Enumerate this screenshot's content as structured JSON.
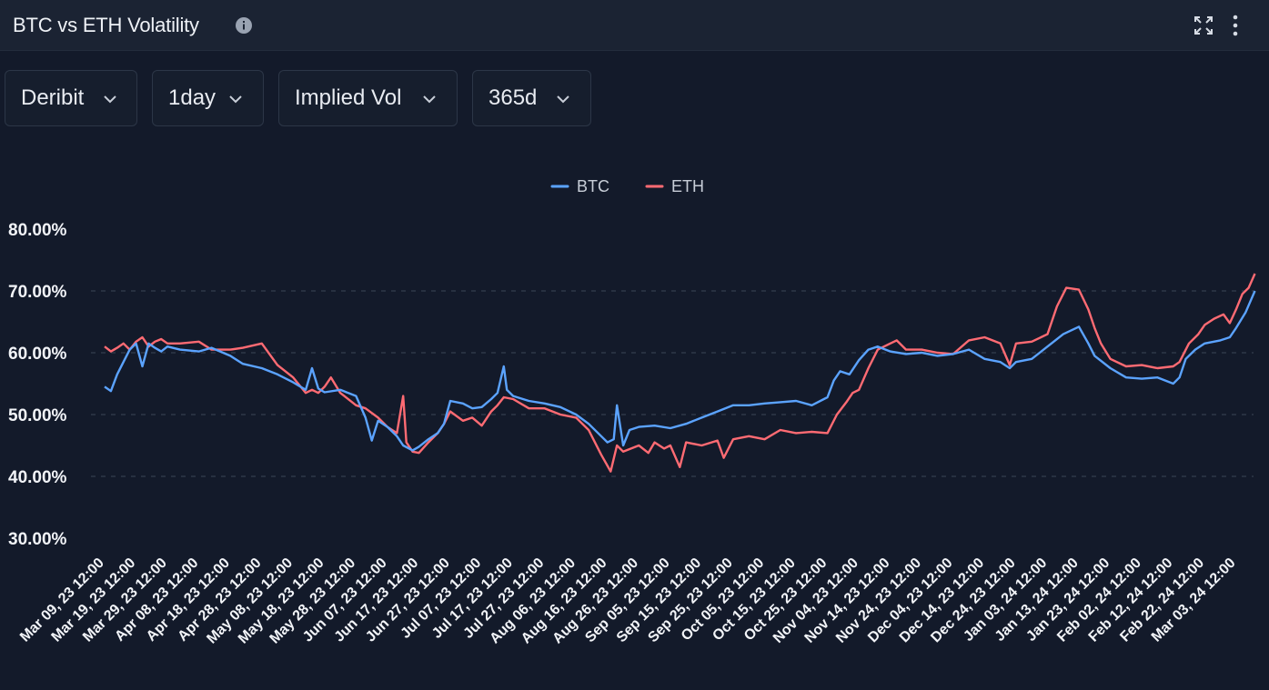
{
  "header": {
    "title": "BTC vs ETH Volatility",
    "info_icon": "info-icon",
    "expand_icon": "expand-icon",
    "more_icon": "more-vertical-icon"
  },
  "filters": [
    {
      "label": "Deribit"
    },
    {
      "label": "1day"
    },
    {
      "label": "Implied Vol"
    },
    {
      "label": "365d"
    }
  ],
  "colors": {
    "background": "#131a2a",
    "btc": "#5ba3ff",
    "eth": "#ff6b73",
    "grid": "#2e3748",
    "text": "#f2f4f8"
  },
  "chart_data": {
    "type": "line",
    "legend_position": "top-center",
    "grid": true,
    "ylim": [
      30,
      80
    ],
    "y_ticks": [
      "80.00%",
      "70.00%",
      "60.00%",
      "50.00%",
      "40.00%",
      "30.00%"
    ],
    "x_ticks": [
      "Mar 09, 23 12:00",
      "Mar 19, 23 12:00",
      "Mar 29, 23 12:00",
      "Apr 08, 23 12:00",
      "Apr 18, 23 12:00",
      "Apr 28, 23 12:00",
      "May 08, 23 12:00",
      "May 18, 23 12:00",
      "May 28, 23 12:00",
      "Jun 07, 23 12:00",
      "Jun 17, 23 12:00",
      "Jun 27, 23 12:00",
      "Jul 07, 23 12:00",
      "Jul 17, 23 12:00",
      "Jul 27, 23 12:00",
      "Aug 06, 23 12:00",
      "Aug 16, 23 12:00",
      "Aug 26, 23 12:00",
      "Sep 05, 23 12:00",
      "Sep 15, 23 12:00",
      "Sep 25, 23 12:00",
      "Oct 05, 23 12:00",
      "Oct 15, 23 12:00",
      "Oct 25, 23 12:00",
      "Nov 04, 23 12:00",
      "Nov 14, 23 12:00",
      "Nov 24, 23 12:00",
      "Dec 04, 23 12:00",
      "Dec 14, 23 12:00",
      "Dec 24, 23 12:00",
      "Jan 03, 24 12:00",
      "Jan 13, 24 12:00",
      "Jan 23, 24 12:00",
      "Feb 02, 24 12:00",
      "Feb 12, 24 12:00",
      "Feb 22, 24 12:00",
      "Mar 03, 24 12:00"
    ],
    "series": [
      {
        "name": "BTC",
        "color": "#5ba3ff",
        "points": [
          [
            "Mar 09, 23 12:00",
            54.5
          ],
          [
            "Mar 11, 23 12:00",
            53.8
          ],
          [
            "Mar 13, 23 12:00",
            56.5
          ],
          [
            "Mar 15, 23 12:00",
            58.5
          ],
          [
            "Mar 17, 23 12:00",
            60.5
          ],
          [
            "Mar 19, 23 12:00",
            61.5
          ],
          [
            "Mar 21, 23 12:00",
            57.8
          ],
          [
            "Mar 23, 23 12:00",
            61.5
          ],
          [
            "Mar 25, 23 12:00",
            60.8
          ],
          [
            "Mar 27, 23 12:00",
            60.2
          ],
          [
            "Mar 29, 23 12:00",
            61.0
          ],
          [
            "Apr 02, 23 12:00",
            60.5
          ],
          [
            "Apr 08, 23 12:00",
            60.2
          ],
          [
            "Apr 12, 23 12:00",
            60.8
          ],
          [
            "Apr 18, 23 12:00",
            59.5
          ],
          [
            "Apr 22, 23 12:00",
            58.2
          ],
          [
            "Apr 28, 23 12:00",
            57.5
          ],
          [
            "May 03, 23 12:00",
            56.5
          ],
          [
            "May 08, 23 12:00",
            55.2
          ],
          [
            "May 12, 23 12:00",
            54.0
          ],
          [
            "May 14, 23 12:00",
            57.5
          ],
          [
            "May 16, 23 12:00",
            54.2
          ],
          [
            "May 18, 23 12:00",
            53.6
          ],
          [
            "May 23, 23 12:00",
            54.0
          ],
          [
            "May 28, 23 12:00",
            53.0
          ],
          [
            "May 31, 23 12:00",
            49.5
          ],
          [
            "Jun 02, 23 12:00",
            45.8
          ],
          [
            "Jun 04, 23 12:00",
            49.0
          ],
          [
            "Jun 07, 23 12:00",
            48.0
          ],
          [
            "Jun 10, 23 12:00",
            46.5
          ],
          [
            "Jun 12, 23 12:00",
            45.0
          ],
          [
            "Jun 15, 23 12:00",
            44.2
          ],
          [
            "Jun 17, 23 12:00",
            44.8
          ],
          [
            "Jun 20, 23 12:00",
            46.0
          ],
          [
            "Jun 23, 23 12:00",
            47.0
          ],
          [
            "Jun 25, 23 12:00",
            48.5
          ],
          [
            "Jun 27, 23 12:00",
            52.2
          ],
          [
            "Jul 01, 23 12:00",
            51.8
          ],
          [
            "Jul 04, 23 12:00",
            51.0
          ],
          [
            "Jul 07, 23 12:00",
            51.2
          ],
          [
            "Jul 10, 23 12:00",
            52.5
          ],
          [
            "Jul 12, 23 12:00",
            53.5
          ],
          [
            "Jul 14, 23 12:00",
            57.8
          ],
          [
            "Jul 15, 23 12:00",
            54.0
          ],
          [
            "Jul 17, 23 12:00",
            53.0
          ],
          [
            "Jul 22, 23 12:00",
            52.2
          ],
          [
            "Jul 27, 23 12:00",
            51.8
          ],
          [
            "Aug 01, 23 12:00",
            51.2
          ],
          [
            "Aug 06, 23 12:00",
            50.0
          ],
          [
            "Aug 10, 23 12:00",
            48.5
          ],
          [
            "Aug 14, 23 12:00",
            46.5
          ],
          [
            "Aug 16, 23 12:00",
            45.5
          ],
          [
            "Aug 18, 23 12:00",
            46.0
          ],
          [
            "Aug 19, 23 12:00",
            51.5
          ],
          [
            "Aug 21, 23 12:00",
            45.0
          ],
          [
            "Aug 23, 23 12:00",
            47.5
          ],
          [
            "Aug 26, 23 12:00",
            48.0
          ],
          [
            "Aug 31, 23 12:00",
            48.2
          ],
          [
            "Sep 05, 23 12:00",
            47.8
          ],
          [
            "Sep 10, 23 12:00",
            48.5
          ],
          [
            "Sep 15, 23 12:00",
            49.5
          ],
          [
            "Sep 20, 23 12:00",
            50.5
          ],
          [
            "Sep 25, 23 12:00",
            51.5
          ],
          [
            "Sep 30, 23 12:00",
            51.5
          ],
          [
            "Oct 05, 23 12:00",
            51.8
          ],
          [
            "Oct 10, 23 12:00",
            52.0
          ],
          [
            "Oct 15, 23 12:00",
            52.2
          ],
          [
            "Oct 20, 23 12:00",
            51.5
          ],
          [
            "Oct 25, 23 12:00",
            52.8
          ],
          [
            "Oct 27, 23 12:00",
            55.5
          ],
          [
            "Oct 29, 23 12:00",
            57.0
          ],
          [
            "Nov 01, 23 12:00",
            56.5
          ],
          [
            "Nov 04, 23 12:00",
            58.8
          ],
          [
            "Nov 07, 23 12:00",
            60.5
          ],
          [
            "Nov 10, 23 12:00",
            61.0
          ],
          [
            "Nov 14, 23 12:00",
            60.2
          ],
          [
            "Nov 19, 23 12:00",
            59.8
          ],
          [
            "Nov 24, 23 12:00",
            60.0
          ],
          [
            "Nov 29, 23 12:00",
            59.5
          ],
          [
            "Dec 04, 23 12:00",
            59.8
          ],
          [
            "Dec 09, 23 12:00",
            60.5
          ],
          [
            "Dec 14, 23 12:00",
            59.0
          ],
          [
            "Dec 19, 23 12:00",
            58.5
          ],
          [
            "Dec 22, 23 12:00",
            57.5
          ],
          [
            "Dec 24, 23 12:00",
            58.5
          ],
          [
            "Dec 29, 23 12:00",
            59.0
          ],
          [
            "Jan 03, 24 12:00",
            61.0
          ],
          [
            "Jan 08, 24 12:00",
            63.0
          ],
          [
            "Jan 13, 24 12:00",
            64.2
          ],
          [
            "Jan 16, 24 12:00",
            61.5
          ],
          [
            "Jan 18, 24 12:00",
            59.5
          ],
          [
            "Jan 23, 24 12:00",
            57.5
          ],
          [
            "Jan 28, 24 12:00",
            56.0
          ],
          [
            "Feb 02, 24 12:00",
            55.8
          ],
          [
            "Feb 07, 24 12:00",
            56.0
          ],
          [
            "Feb 12, 24 12:00",
            55.0
          ],
          [
            "Feb 14, 24 12:00",
            56.0
          ],
          [
            "Feb 16, 24 12:00",
            59.0
          ],
          [
            "Feb 19, 24 12:00",
            60.5
          ],
          [
            "Feb 22, 24 12:00",
            61.5
          ],
          [
            "Feb 27, 24 12:00",
            62.0
          ],
          [
            "Mar 01, 24 12:00",
            62.5
          ],
          [
            "Mar 03, 24 12:00",
            64.0
          ],
          [
            "Mar 06, 24 12:00",
            66.5
          ],
          [
            "Mar 09, 24 12:00",
            70.0
          ]
        ]
      },
      {
        "name": "ETH",
        "color": "#ff6b73",
        "points": [
          [
            "Mar 09, 23 12:00",
            61.0
          ],
          [
            "Mar 11, 23 12:00",
            60.2
          ],
          [
            "Mar 13, 23 12:00",
            60.8
          ],
          [
            "Mar 15, 23 12:00",
            61.5
          ],
          [
            "Mar 17, 23 12:00",
            60.5
          ],
          [
            "Mar 19, 23 12:00",
            61.8
          ],
          [
            "Mar 21, 23 12:00",
            62.5
          ],
          [
            "Mar 23, 23 12:00",
            61.0
          ],
          [
            "Mar 25, 23 12:00",
            61.8
          ],
          [
            "Mar 27, 23 12:00",
            62.2
          ],
          [
            "Mar 29, 23 12:00",
            61.5
          ],
          [
            "Apr 02, 23 12:00",
            61.5
          ],
          [
            "Apr 08, 23 12:00",
            61.8
          ],
          [
            "Apr 12, 23 12:00",
            60.5
          ],
          [
            "Apr 18, 23 12:00",
            60.5
          ],
          [
            "Apr 22, 23 12:00",
            60.8
          ],
          [
            "Apr 28, 23 12:00",
            61.5
          ],
          [
            "May 03, 23 12:00",
            58.0
          ],
          [
            "May 08, 23 12:00",
            56.0
          ],
          [
            "May 12, 23 12:00",
            53.5
          ],
          [
            "May 14, 23 12:00",
            54.0
          ],
          [
            "May 16, 23 12:00",
            53.5
          ],
          [
            "May 18, 23 12:00",
            54.5
          ],
          [
            "May 20, 23 12:00",
            56.0
          ],
          [
            "May 23, 23 12:00",
            53.5
          ],
          [
            "May 28, 23 12:00",
            51.5
          ],
          [
            "May 31, 23 12:00",
            51.0
          ],
          [
            "Jun 04, 23 12:00",
            49.5
          ],
          [
            "Jun 07, 23 12:00",
            48.0
          ],
          [
            "Jun 10, 23 12:00",
            47.0
          ],
          [
            "Jun 12, 23 12:00",
            53.0
          ],
          [
            "Jun 13, 23 12:00",
            45.5
          ],
          [
            "Jun 15, 23 12:00",
            44.0
          ],
          [
            "Jun 17, 23 12:00",
            43.8
          ],
          [
            "Jun 20, 23 12:00",
            45.5
          ],
          [
            "Jun 23, 23 12:00",
            47.0
          ],
          [
            "Jun 25, 23 12:00",
            48.5
          ],
          [
            "Jun 27, 23 12:00",
            50.5
          ],
          [
            "Jul 01, 23 12:00",
            49.0
          ],
          [
            "Jul 04, 23 12:00",
            49.5
          ],
          [
            "Jul 07, 23 12:00",
            48.2
          ],
          [
            "Jul 10, 23 12:00",
            50.5
          ],
          [
            "Jul 12, 23 12:00",
            51.5
          ],
          [
            "Jul 14, 23 12:00",
            52.8
          ],
          [
            "Jul 17, 23 12:00",
            52.5
          ],
          [
            "Jul 22, 23 12:00",
            51.0
          ],
          [
            "Jul 27, 23 12:00",
            51.0
          ],
          [
            "Aug 01, 23 12:00",
            50.0
          ],
          [
            "Aug 06, 23 12:00",
            49.5
          ],
          [
            "Aug 10, 23 12:00",
            47.5
          ],
          [
            "Aug 14, 23 12:00",
            43.5
          ],
          [
            "Aug 17, 23 12:00",
            40.8
          ],
          [
            "Aug 19, 23 12:00",
            45.0
          ],
          [
            "Aug 21, 23 12:00",
            44.0
          ],
          [
            "Aug 26, 23 12:00",
            45.0
          ],
          [
            "Aug 29, 23 12:00",
            43.8
          ],
          [
            "Aug 31, 23 12:00",
            45.5
          ],
          [
            "Sep 03, 23 12:00",
            44.5
          ],
          [
            "Sep 05, 23 12:00",
            45.0
          ],
          [
            "Sep 08, 23 12:00",
            41.5
          ],
          [
            "Sep 10, 23 12:00",
            45.5
          ],
          [
            "Sep 15, 23 12:00",
            45.0
          ],
          [
            "Sep 20, 23 12:00",
            45.8
          ],
          [
            "Sep 22, 23 12:00",
            43.0
          ],
          [
            "Sep 25, 23 12:00",
            46.0
          ],
          [
            "Sep 30, 23 12:00",
            46.5
          ],
          [
            "Oct 05, 23 12:00",
            46.0
          ],
          [
            "Oct 10, 23 12:00",
            47.5
          ],
          [
            "Oct 15, 23 12:00",
            47.0
          ],
          [
            "Oct 20, 23 12:00",
            47.2
          ],
          [
            "Oct 25, 23 12:00",
            47.0
          ],
          [
            "Oct 28, 23 12:00",
            50.0
          ],
          [
            "Oct 31, 23 12:00",
            52.0
          ],
          [
            "Nov 02, 23 12:00",
            53.5
          ],
          [
            "Nov 04, 23 12:00",
            54.0
          ],
          [
            "Nov 07, 23 12:00",
            57.5
          ],
          [
            "Nov 10, 23 12:00",
            60.5
          ],
          [
            "Nov 14, 23 12:00",
            61.5
          ],
          [
            "Nov 16, 23 12:00",
            62.0
          ],
          [
            "Nov 19, 23 12:00",
            60.5
          ],
          [
            "Nov 24, 23 12:00",
            60.5
          ],
          [
            "Nov 29, 23 12:00",
            60.0
          ],
          [
            "Dec 04, 23 12:00",
            59.8
          ],
          [
            "Dec 09, 23 12:00",
            62.0
          ],
          [
            "Dec 14, 23 12:00",
            62.5
          ],
          [
            "Dec 19, 23 12:00",
            61.5
          ],
          [
            "Dec 22, 23 12:00",
            58.0
          ],
          [
            "Dec 24, 23 12:00",
            61.5
          ],
          [
            "Dec 29, 23 12:00",
            61.8
          ],
          [
            "Jan 03, 24 12:00",
            63.0
          ],
          [
            "Jan 06, 24 12:00",
            67.5
          ],
          [
            "Jan 09, 24 12:00",
            70.5
          ],
          [
            "Jan 13, 24 12:00",
            70.2
          ],
          [
            "Jan 16, 24 12:00",
            67.0
          ],
          [
            "Jan 18, 24 12:00",
            64.0
          ],
          [
            "Jan 20, 24 12:00",
            61.5
          ],
          [
            "Jan 23, 24 12:00",
            59.0
          ],
          [
            "Jan 28, 24 12:00",
            57.8
          ],
          [
            "Feb 02, 24 12:00",
            58.0
          ],
          [
            "Feb 07, 24 12:00",
            57.5
          ],
          [
            "Feb 12, 24 12:00",
            57.8
          ],
          [
            "Feb 14, 24 12:00",
            58.5
          ],
          [
            "Feb 17, 24 12:00",
            61.5
          ],
          [
            "Feb 20, 24 12:00",
            63.0
          ],
          [
            "Feb 22, 24 12:00",
            64.5
          ],
          [
            "Feb 25, 24 12:00",
            65.5
          ],
          [
            "Feb 28, 24 12:00",
            66.2
          ],
          [
            "Mar 01, 24 12:00",
            64.8
          ],
          [
            "Mar 03, 24 12:00",
            67.0
          ],
          [
            "Mar 05, 24 12:00",
            69.5
          ],
          [
            "Mar 07, 24 12:00",
            70.5
          ],
          [
            "Mar 09, 24 12:00",
            72.8
          ]
        ]
      }
    ]
  }
}
